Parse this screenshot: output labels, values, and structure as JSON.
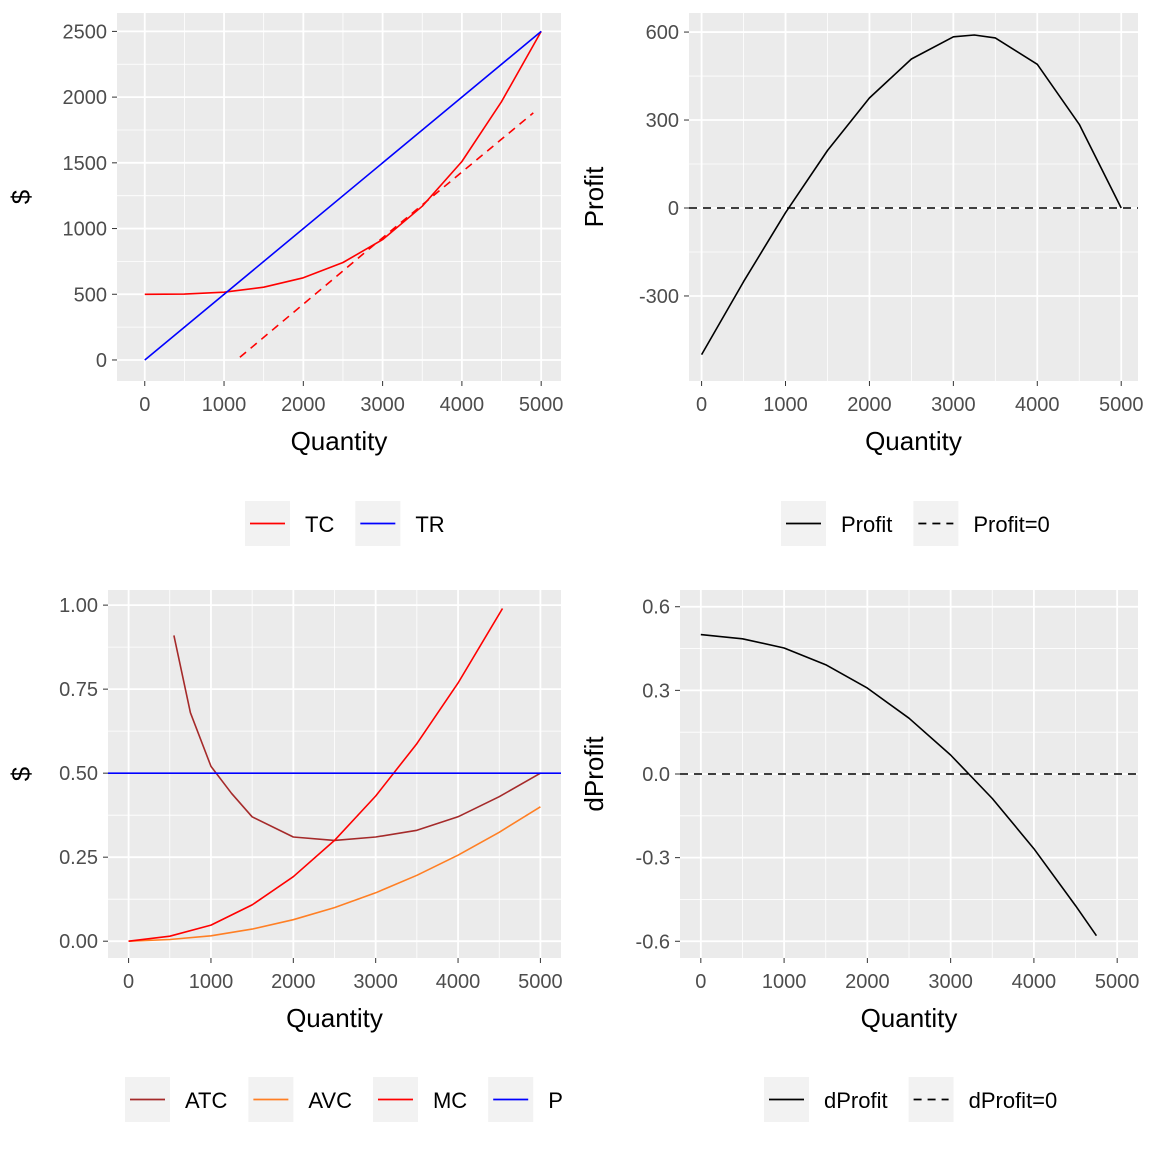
{
  "colors": {
    "panel_bg": "#ebebeb",
    "grid": "#ffffff",
    "legend_key_bg": "#f2f2f2",
    "tick_text": "#4d4d4d",
    "TC": "#ff0000",
    "TR": "#0000ff",
    "ATC": "#a52a2a",
    "AVC": "#ff7f24",
    "MC": "#ff0000",
    "P": "#0000ff",
    "Profit": "#000000"
  },
  "chart_data": [
    {
      "type": "line",
      "xlabel": "Quantity",
      "ylabel": "$",
      "xlim": [
        -350,
        5250
      ],
      "ylim": [
        -160,
        2640
      ],
      "xticks": [
        0,
        1000,
        2000,
        3000,
        4000,
        5000
      ],
      "xtick_labels": [
        "0",
        "1000",
        "2000",
        "3000",
        "4000",
        "5000"
      ],
      "yticks": [
        0,
        500,
        1000,
        1500,
        2000,
        2500
      ],
      "ytick_labels": [
        "0",
        "500",
        "1000",
        "1500",
        "2000",
        "2500"
      ],
      "grid": true,
      "legend_position": "bottom",
      "legend": [
        {
          "label": "TC",
          "color": "#ff0000",
          "dash": "solid"
        },
        {
          "label": "TR",
          "color": "#0000ff",
          "dash": "solid"
        }
      ],
      "series": [
        {
          "name": "TC",
          "color": "#ff0000",
          "dash": "solid",
          "x": [
            0,
            500,
            1000,
            1500,
            2000,
            2500,
            3000,
            3500,
            4000,
            4500,
            5000
          ],
          "y": [
            500,
            501,
            516,
            554,
            625,
            742,
            916,
            1170,
            1510,
            1965,
            2500
          ]
        },
        {
          "name": "TR",
          "color": "#0000ff",
          "dash": "solid",
          "x": [
            0,
            5000
          ],
          "y": [
            0,
            2500
          ]
        },
        {
          "color": "#ff0000",
          "dash": "dashed",
          "x": [
            1200,
            2800,
            3600,
            4900
          ],
          "y": [
            20,
            830,
            1230,
            1880
          ]
        }
      ]
    },
    {
      "type": "line",
      "xlabel": "Quantity",
      "ylabel": "Profit",
      "xlim": [
        -150,
        5200
      ],
      "ylim": [
        -590,
        665
      ],
      "xticks": [
        0,
        1000,
        2000,
        3000,
        4000,
        5000
      ],
      "xtick_labels": [
        "0",
        "1000",
        "2000",
        "3000",
        "4000",
        "5000"
      ],
      "yticks": [
        -300,
        0,
        300,
        600
      ],
      "ytick_labels": [
        "-300",
        "0",
        "300",
        "600"
      ],
      "grid": true,
      "legend_position": "bottom",
      "legend": [
        {
          "label": "Profit",
          "color": "#000000",
          "dash": "solid"
        },
        {
          "label": "Profit=0",
          "color": "#000000",
          "dash": "dashed"
        }
      ],
      "series": [
        {
          "name": "Profit",
          "color": "#000000",
          "dash": "solid",
          "x": [
            0,
            500,
            1000,
            1500,
            2000,
            2500,
            3000,
            3250,
            3500,
            4000,
            4500,
            5000
          ],
          "y": [
            -500,
            -251,
            -16,
            196,
            375,
            508,
            584,
            590,
            580,
            490,
            285,
            0
          ]
        },
        {
          "name": "Profit=0",
          "color": "#000000",
          "dash": "dashed",
          "x": [
            -150,
            5200
          ],
          "y": [
            0,
            0
          ]
        }
      ]
    },
    {
      "type": "line",
      "xlabel": "Quantity",
      "ylabel": "$",
      "xlim": [
        -250,
        5250
      ],
      "ylim": [
        -0.05,
        1.045
      ],
      "xticks": [
        0,
        1000,
        2000,
        3000,
        4000,
        5000
      ],
      "xtick_labels": [
        "0",
        "1000",
        "2000",
        "3000",
        "4000",
        "5000"
      ],
      "yticks": [
        0,
        0.25,
        0.5,
        0.75,
        1.0
      ],
      "ytick_labels": [
        "0.00",
        "0.25",
        "0.50",
        "0.75",
        "1.00"
      ],
      "grid": true,
      "legend_position": "bottom",
      "legend": [
        {
          "label": "ATC",
          "color": "#a52a2a",
          "dash": "solid"
        },
        {
          "label": "AVC",
          "color": "#ff7f24",
          "dash": "solid"
        },
        {
          "label": "MC",
          "color": "#ff0000",
          "dash": "solid"
        },
        {
          "label": "P",
          "color": "#0000ff",
          "dash": "solid"
        }
      ],
      "series": [
        {
          "name": "ATC",
          "color": "#a52a2a",
          "dash": "solid",
          "x": [
            550,
            750,
            1000,
            1250,
            1500,
            2000,
            2500,
            3000,
            3500,
            4000,
            4500,
            5000
          ],
          "y": [
            0.91,
            0.68,
            0.52,
            0.44,
            0.37,
            0.31,
            0.3,
            0.31,
            0.33,
            0.37,
            0.43,
            0.5
          ]
        },
        {
          "name": "AVC",
          "color": "#ff7f24",
          "dash": "solid",
          "x": [
            0,
            500,
            1000,
            1500,
            2000,
            2500,
            3000,
            3500,
            4000,
            4500,
            5000
          ],
          "y": [
            0,
            0.005,
            0.016,
            0.036,
            0.064,
            0.1,
            0.144,
            0.196,
            0.256,
            0.324,
            0.4
          ]
        },
        {
          "name": "MC",
          "color": "#ff0000",
          "dash": "solid",
          "x": [
            0,
            500,
            1000,
            1500,
            2000,
            2500,
            3000,
            3500,
            4000,
            4540
          ],
          "y": [
            0,
            0.015,
            0.048,
            0.108,
            0.192,
            0.3,
            0.432,
            0.588,
            0.768,
            0.99
          ]
        },
        {
          "name": "P",
          "color": "#0000ff",
          "dash": "solid",
          "x": [
            -250,
            5250
          ],
          "y": [
            0.5,
            0.5
          ]
        }
      ]
    },
    {
      "type": "line",
      "xlabel": "Quantity",
      "ylabel": "dProfit",
      "xlim": [
        -250,
        5250
      ],
      "ylim": [
        -0.66,
        0.66
      ],
      "xticks": [
        0,
        1000,
        2000,
        3000,
        4000,
        5000
      ],
      "xtick_labels": [
        "0",
        "1000",
        "2000",
        "3000",
        "4000",
        "5000"
      ],
      "yticks": [
        -0.6,
        -0.3,
        0,
        0.3,
        0.6
      ],
      "ytick_labels": [
        "-0.6",
        "-0.3",
        "0.0",
        "0.3",
        "0.6"
      ],
      "grid": true,
      "legend_position": "bottom",
      "legend": [
        {
          "label": "dProfit",
          "color": "#000000",
          "dash": "solid"
        },
        {
          "label": "dProfit=0",
          "color": "#000000",
          "dash": "dashed"
        }
      ],
      "series": [
        {
          "name": "dProfit",
          "color": "#000000",
          "dash": "solid",
          "x": [
            0,
            500,
            1000,
            1500,
            2000,
            2500,
            3000,
            3500,
            4000,
            4500,
            4750
          ],
          "y": [
            0.5,
            0.485,
            0.452,
            0.392,
            0.308,
            0.2,
            0.068,
            -0.088,
            -0.268,
            -0.472,
            -0.58
          ]
        },
        {
          "name": "dProfit=0",
          "color": "#000000",
          "dash": "dashed",
          "x": [
            -250,
            5250
          ],
          "y": [
            0,
            0
          ]
        }
      ]
    }
  ]
}
